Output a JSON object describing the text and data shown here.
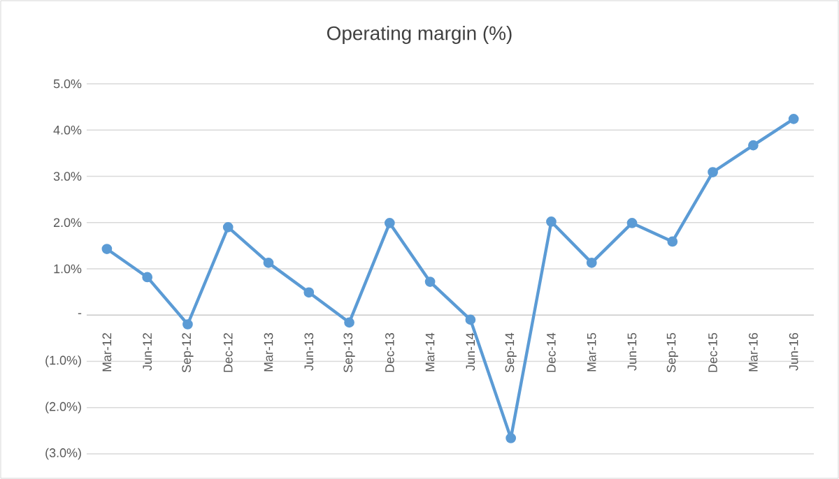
{
  "chart_data": {
    "type": "line",
    "title": "Operating margin (%)",
    "categories": [
      "Mar-12",
      "Jun-12",
      "Sep-12",
      "Dec-12",
      "Mar-13",
      "Jun-13",
      "Sep-13",
      "Dec-13",
      "Mar-14",
      "Jun-14",
      "Sep-14",
      "Dec-14",
      "Mar-15",
      "Jun-15",
      "Sep-15",
      "Dec-15",
      "Mar-16",
      "Jun-16"
    ],
    "series": [
      {
        "color": "#5b9bd5",
        "values": [
          1.43,
          0.82,
          -0.2,
          1.9,
          1.13,
          0.49,
          -0.16,
          1.99,
          0.72,
          -0.1,
          -2.66,
          2.02,
          1.13,
          1.99,
          1.59,
          3.09,
          3.67,
          4.24
        ]
      }
    ],
    "ylim": [
      -3,
      5
    ],
    "yticks": [
      {
        "value": -3,
        "label": "(3.0%)"
      },
      {
        "value": -2,
        "label": "(2.0%)"
      },
      {
        "value": -1,
        "label": "(1.0%)"
      },
      {
        "value": 0,
        "label": "-"
      },
      {
        "value": 1,
        "label": "1.0%"
      },
      {
        "value": 2,
        "label": "2.0%"
      },
      {
        "value": 3,
        "label": "3.0%"
      },
      {
        "value": 4,
        "label": "4.0%"
      },
      {
        "value": 5,
        "label": "5.0%"
      }
    ],
    "grid": "y",
    "marker": "circle",
    "line_style": "solid"
  }
}
